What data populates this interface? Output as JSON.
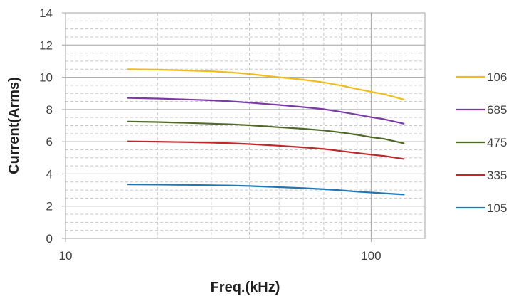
{
  "chart_data": {
    "type": "line",
    "title": "",
    "xlabel": "Freq.(kHz)",
    "ylabel": "Current(Arms)",
    "x_scale": "log",
    "xlim": [
      10,
      150
    ],
    "ylim": [
      0,
      14
    ],
    "x_ticks": [
      10,
      100
    ],
    "x_tick_labels": [
      "10",
      "100"
    ],
    "y_ticks": [
      0,
      2,
      4,
      6,
      8,
      10,
      12,
      14
    ],
    "y_tick_labels": [
      "0",
      "2",
      "4",
      "6",
      "8",
      "10",
      "12",
      "14"
    ],
    "grid": true,
    "minor_grid": true,
    "legend_position": "right",
    "x": [
      16,
      20,
      25,
      30,
      35,
      40,
      50,
      60,
      70,
      80,
      90,
      100,
      110,
      128
    ],
    "series": [
      {
        "name": "106",
        "color": "#f2bc18",
        "values": [
          10.5,
          10.47,
          10.42,
          10.37,
          10.3,
          10.2,
          10.0,
          9.85,
          9.68,
          9.48,
          9.27,
          9.1,
          8.95,
          8.62
        ]
      },
      {
        "name": "685",
        "color": "#7b3aa8",
        "values": [
          8.72,
          8.68,
          8.62,
          8.57,
          8.5,
          8.42,
          8.28,
          8.15,
          8.02,
          7.85,
          7.68,
          7.52,
          7.4,
          7.12
        ]
      },
      {
        "name": "475",
        "color": "#4f6a28",
        "values": [
          7.25,
          7.22,
          7.17,
          7.12,
          7.08,
          7.02,
          6.9,
          6.8,
          6.7,
          6.57,
          6.43,
          6.28,
          6.18,
          5.9
        ]
      },
      {
        "name": "335",
        "color": "#c0282a",
        "values": [
          6.02,
          6.0,
          5.97,
          5.94,
          5.9,
          5.85,
          5.75,
          5.65,
          5.55,
          5.42,
          5.3,
          5.2,
          5.12,
          4.93
        ]
      },
      {
        "name": "105",
        "color": "#1f77b4",
        "values": [
          3.35,
          3.34,
          3.32,
          3.3,
          3.28,
          3.25,
          3.18,
          3.12,
          3.05,
          2.98,
          2.9,
          2.85,
          2.8,
          2.72
        ]
      }
    ]
  }
}
